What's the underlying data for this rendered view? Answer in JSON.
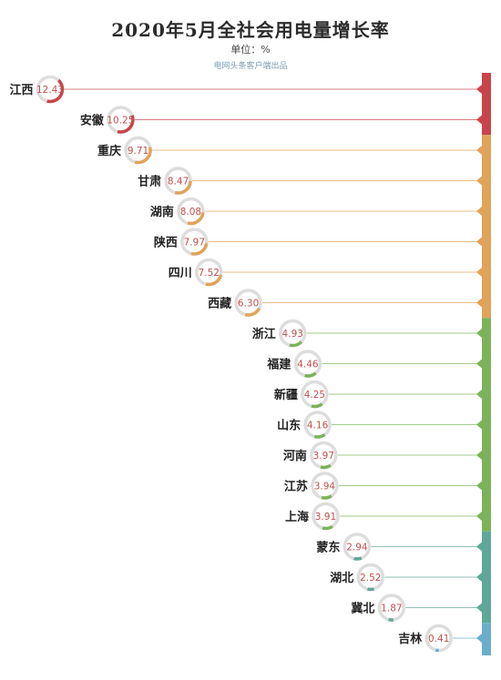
{
  "title": "2020年5月全社会用电量增长率",
  "unit": "单位：%",
  "source": "电网头条客户端出品",
  "chart_data": {
    "type": "bar",
    "title": "2020年5月全社会用电量增长率",
    "subtitle": "单位：%",
    "categories": [
      "江西",
      "安徽",
      "重庆",
      "甘肃",
      "湖南",
      "陕西",
      "四川",
      "西藏",
      "浙江",
      "福建",
      "新疆",
      "山东",
      "河南",
      "江苏",
      "上海",
      "蒙东",
      "湖北",
      "冀北",
      "吉林"
    ],
    "values": [
      12.43,
      10.25,
      9.71,
      8.47,
      8.08,
      7.97,
      7.52,
      6.3,
      4.93,
      4.46,
      4.25,
      4.16,
      3.97,
      3.94,
      3.91,
      2.94,
      2.52,
      1.87,
      0.41
    ],
    "colors": {
      "red": "#c9444a",
      "orange": "#e0a35a",
      "green": "#7cb35a",
      "teal": "#5fa899",
      "blue": "#6aaecb",
      "ring": "#dddddd",
      "value_text": "#c0504d"
    },
    "groups": [
      {
        "color": "red",
        "members": [
          "江西",
          "安徽"
        ]
      },
      {
        "color": "orange",
        "members": [
          "重庆",
          "甘肃",
          "湖南",
          "陕西",
          "四川",
          "西藏"
        ]
      },
      {
        "color": "green",
        "members": [
          "浙江",
          "福建",
          "新疆",
          "山东",
          "河南",
          "江苏",
          "上海"
        ]
      },
      {
        "color": "teal",
        "members": [
          "蒙东",
          "湖北",
          "冀北"
        ]
      },
      {
        "color": "blue",
        "members": [
          "吉林"
        ]
      }
    ]
  }
}
